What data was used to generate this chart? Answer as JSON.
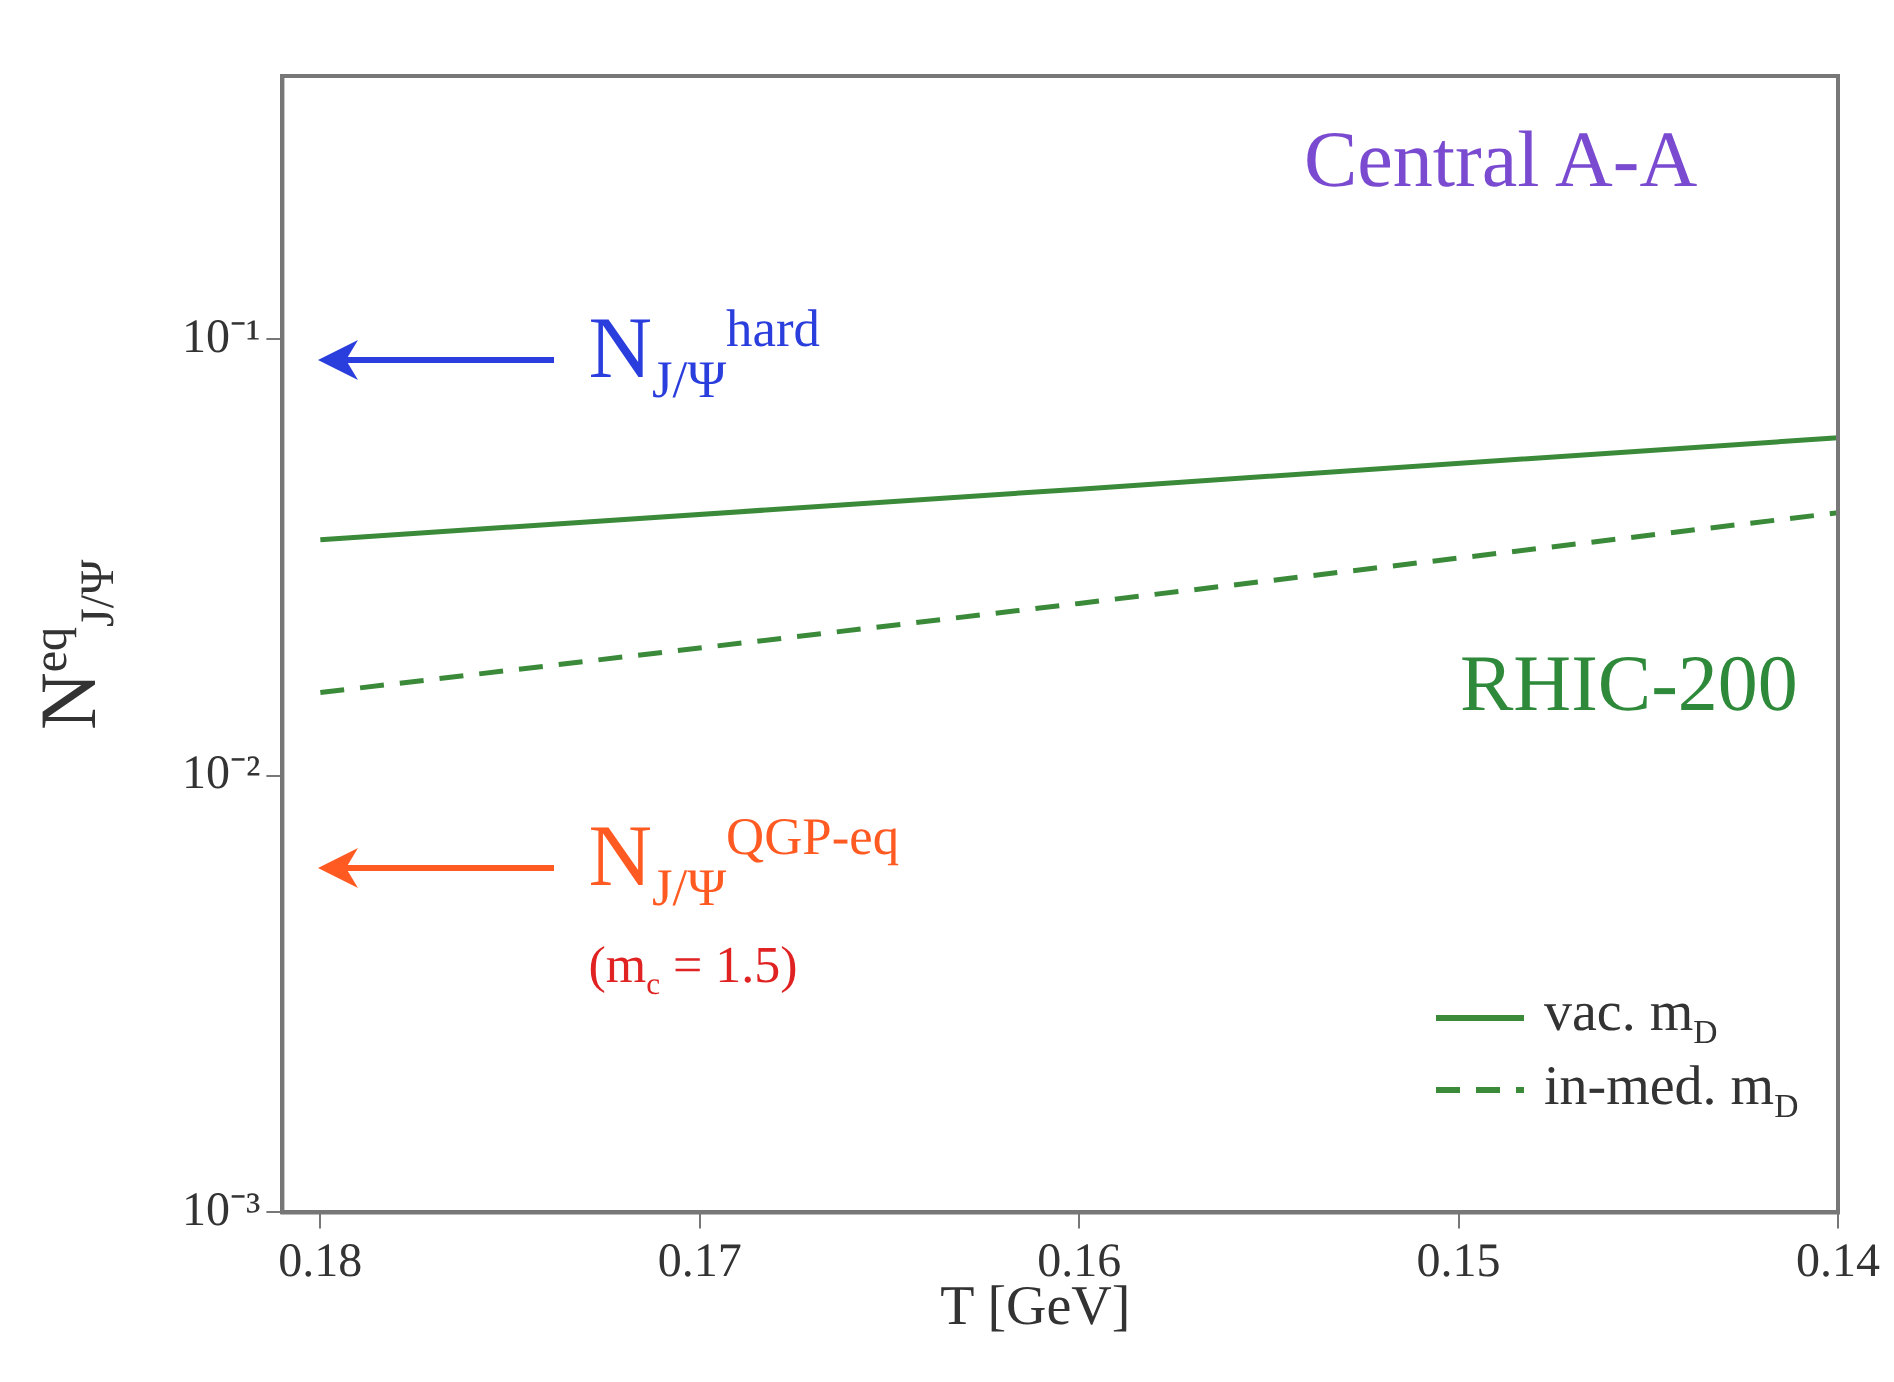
{
  "chart_data": {
    "type": "line",
    "xlabel": "T [GeV]",
    "ylabel": "N$^{eq}$$_{J/Ψ}$",
    "log": "y",
    "legend": "bottom right",
    "xlim": [
      0.181,
      0.14
    ],
    "xticks": [
      0.18,
      0.17,
      0.16,
      0.15,
      0.14
    ],
    "ylim": [
      0.001,
      0.4
    ],
    "yticks": [
      {
        "value": 0.001,
        "label": "10⁻³"
      },
      {
        "value": 0.01,
        "label": "10⁻²"
      },
      {
        "value": 0.1,
        "label": "10⁻¹"
      }
    ],
    "series": [
      {
        "name": "vac. m$_{D}$",
        "color": "#3a8a3a",
        "line_style": "solid",
        "x": [
          0.18,
          0.16,
          0.14
        ],
        "values": [
          0.0347,
          0.0453,
          0.0594
        ]
      },
      {
        "name": "in-med. m$_{D}$",
        "color": "#3a8a3a",
        "line_style": "dashed",
        "x": [
          0.18,
          0.16,
          0.14
        ],
        "values": [
          0.0155,
          0.0248,
          0.04
        ]
      }
    ],
    "annotations": [
      "N$_{J/Ψ}$$^{hard}$",
      "Central A-A",
      "RHIC-200",
      "N$_{J/Ψ}$$^{QGP-eq}$",
      "(m$_{c}$ = 1.5)"
    ]
  }
}
